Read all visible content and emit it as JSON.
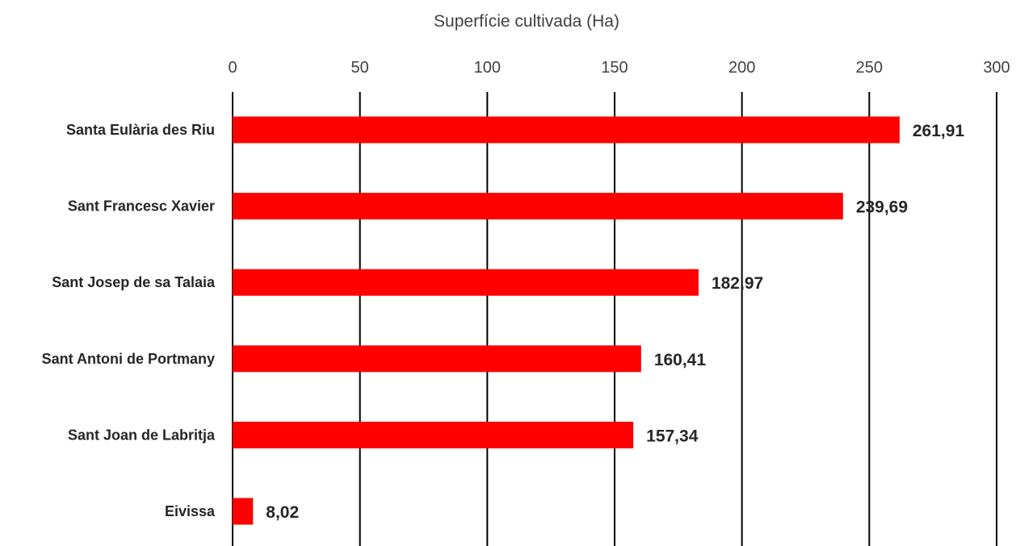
{
  "chart_data": {
    "type": "bar",
    "orientation": "horizontal",
    "title": "Superfície cultivada (Ha)",
    "categories": [
      "Santa Eulària des Riu",
      "Sant Francesc Xavier",
      "Sant Josep de sa Talaia",
      "Sant Antoni de Portmany",
      "Sant Joan de Labritja",
      "Eivissa"
    ],
    "values": [
      261.91,
      239.69,
      182.97,
      160.41,
      157.34,
      8.02
    ],
    "data_labels": [
      "261,91",
      "239,69",
      "182,97",
      "160,41",
      "157,34",
      "8,02"
    ],
    "x_ticks": [
      "0",
      "50",
      "100",
      "150",
      "200",
      "250",
      "300"
    ],
    "x_tick_values": [
      0,
      50,
      100,
      150,
      200,
      250,
      300
    ],
    "xlim": [
      0,
      300
    ],
    "xaxis_position": "top",
    "grid": true,
    "bar_color": "#ff0000",
    "grid_color": "#000000"
  }
}
